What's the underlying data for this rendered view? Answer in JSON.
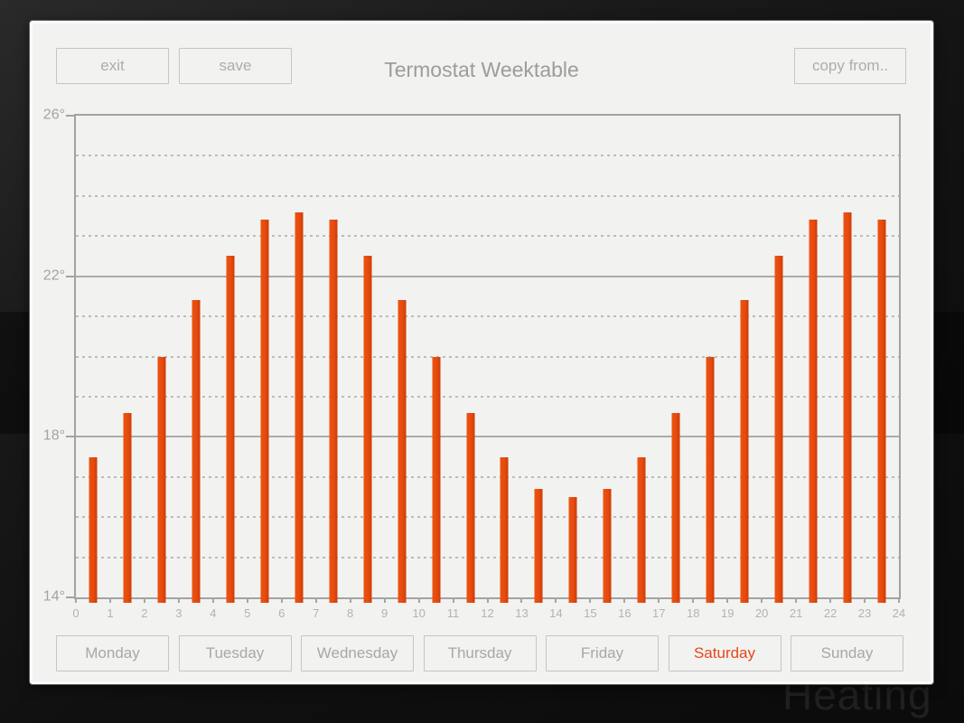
{
  "background": {
    "watermark": "Heating"
  },
  "header": {
    "exit_label": "exit",
    "save_label": "save",
    "title": "Termostat Weektable",
    "copy_from_label": "copy from.."
  },
  "days": [
    {
      "label": "Monday",
      "selected": false
    },
    {
      "label": "Tuesday",
      "selected": false
    },
    {
      "label": "Wednesday",
      "selected": false
    },
    {
      "label": "Thursday",
      "selected": false
    },
    {
      "label": "Friday",
      "selected": false
    },
    {
      "label": "Saturday",
      "selected": true
    },
    {
      "label": "Sunday",
      "selected": false
    }
  ],
  "colors": {
    "bar": "#e5490f",
    "bar_edge": "#cc3c06",
    "selected_day_text": "#e84518",
    "panel_background": "#f2f2f1",
    "muted_text": "#a8a8a8"
  },
  "chart_data": {
    "type": "bar",
    "title": "Termostat Weektable",
    "x": [
      0,
      1,
      2,
      3,
      4,
      5,
      6,
      7,
      8,
      9,
      10,
      11,
      12,
      13,
      14,
      15,
      16,
      17,
      18,
      19,
      20,
      21,
      22,
      23
    ],
    "values": [
      17.5,
      18.6,
      20.0,
      21.4,
      22.5,
      23.4,
      23.6,
      23.4,
      22.5,
      21.4,
      20.0,
      18.6,
      17.5,
      16.7,
      16.5,
      16.7,
      17.5,
      18.6,
      20.0,
      21.4,
      22.5,
      23.4,
      23.6,
      23.4
    ],
    "ylim": [
      14,
      26
    ],
    "xlim": [
      0,
      24
    ],
    "y_major_ticks": [
      {
        "value": 26,
        "label": "26°"
      },
      {
        "value": 22,
        "label": "22°"
      },
      {
        "value": 18,
        "label": "18°"
      },
      {
        "value": 14,
        "label": "14°"
      }
    ],
    "y_solid_gridlines": [
      22,
      18
    ],
    "y_dashed_gridlines": [
      25,
      24,
      23,
      21,
      20,
      19,
      17,
      16,
      15
    ],
    "x_tick_labels": [
      "0",
      "1",
      "2",
      "3",
      "4",
      "5",
      "6",
      "7",
      "8",
      "9",
      "10",
      "11",
      "12",
      "13",
      "14",
      "15",
      "16",
      "17",
      "18",
      "19",
      "20",
      "21",
      "22",
      "23",
      "24"
    ],
    "grid": "on",
    "legend": "none",
    "bar_color": "#e5490f"
  }
}
